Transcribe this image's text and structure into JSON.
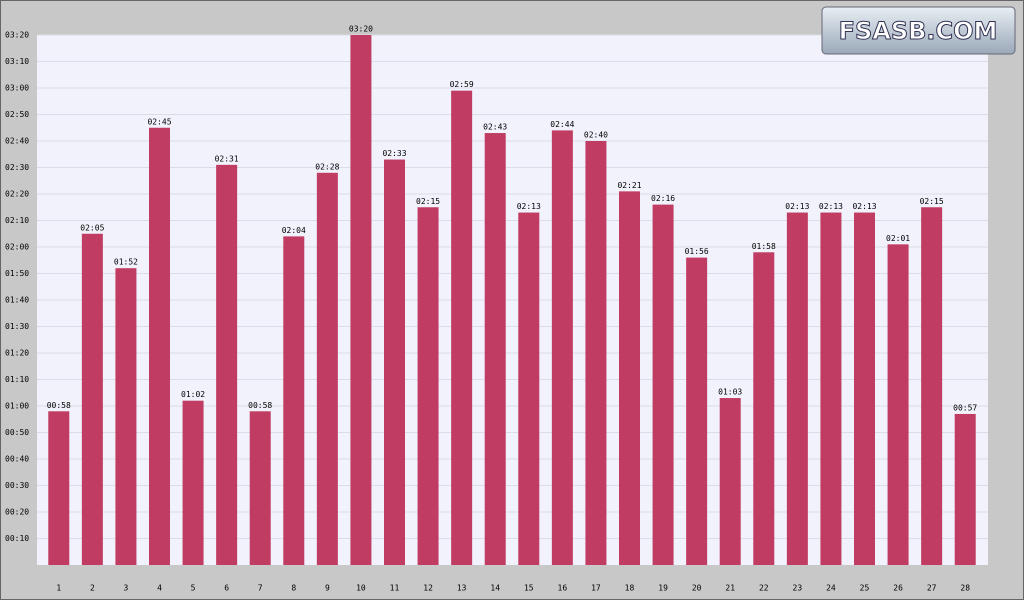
{
  "chart_data": {
    "type": "bar",
    "watermark": "FSASB.COM",
    "categories": [
      "1",
      "2",
      "3",
      "4",
      "5",
      "6",
      "7",
      "8",
      "9",
      "10",
      "11",
      "12",
      "13",
      "14",
      "15",
      "16",
      "17",
      "18",
      "19",
      "20",
      "21",
      "22",
      "23",
      "24",
      "25",
      "26",
      "27",
      "28"
    ],
    "values": [
      58,
      125,
      112,
      165,
      62,
      151,
      58,
      124,
      148,
      200,
      153,
      135,
      179,
      163,
      133,
      164,
      160,
      141,
      136,
      116,
      63,
      118,
      133,
      133,
      133,
      121,
      135,
      57
    ],
    "value_labels": [
      "00:58",
      "02:05",
      "01:52",
      "02:45",
      "01:02",
      "02:31",
      "00:58",
      "02:04",
      "02:28",
      "03:20",
      "02:33",
      "02:15",
      "02:59",
      "02:43",
      "02:13",
      "02:44",
      "02:40",
      "02:21",
      "02:16",
      "01:56",
      "01:03",
      "01:58",
      "02:13",
      "02:13",
      "02:13",
      "02:01",
      "02:15",
      "00:57"
    ],
    "color": "#c03c62",
    "ylim": [
      0,
      200
    ],
    "yticks": [
      {
        "value": 10,
        "label": "00:10"
      },
      {
        "value": 20,
        "label": "00:20"
      },
      {
        "value": 30,
        "label": "00:30"
      },
      {
        "value": 40,
        "label": "00:40"
      },
      {
        "value": 50,
        "label": "00:50"
      },
      {
        "value": 60,
        "label": "01:00"
      },
      {
        "value": 70,
        "label": "01:10"
      },
      {
        "value": 80,
        "label": "01:20"
      },
      {
        "value": 90,
        "label": "01:30"
      },
      {
        "value": 100,
        "label": "01:40"
      },
      {
        "value": 110,
        "label": "01:50"
      },
      {
        "value": 120,
        "label": "02:00"
      },
      {
        "value": 130,
        "label": "02:10"
      },
      {
        "value": 140,
        "label": "02:20"
      },
      {
        "value": 150,
        "label": "02:30"
      },
      {
        "value": 160,
        "label": "02:40"
      },
      {
        "value": 170,
        "label": "02:50"
      },
      {
        "value": 180,
        "label": "03:00"
      },
      {
        "value": 190,
        "label": "03:10"
      },
      {
        "value": 200,
        "label": "03:20"
      }
    ],
    "grid": true
  }
}
